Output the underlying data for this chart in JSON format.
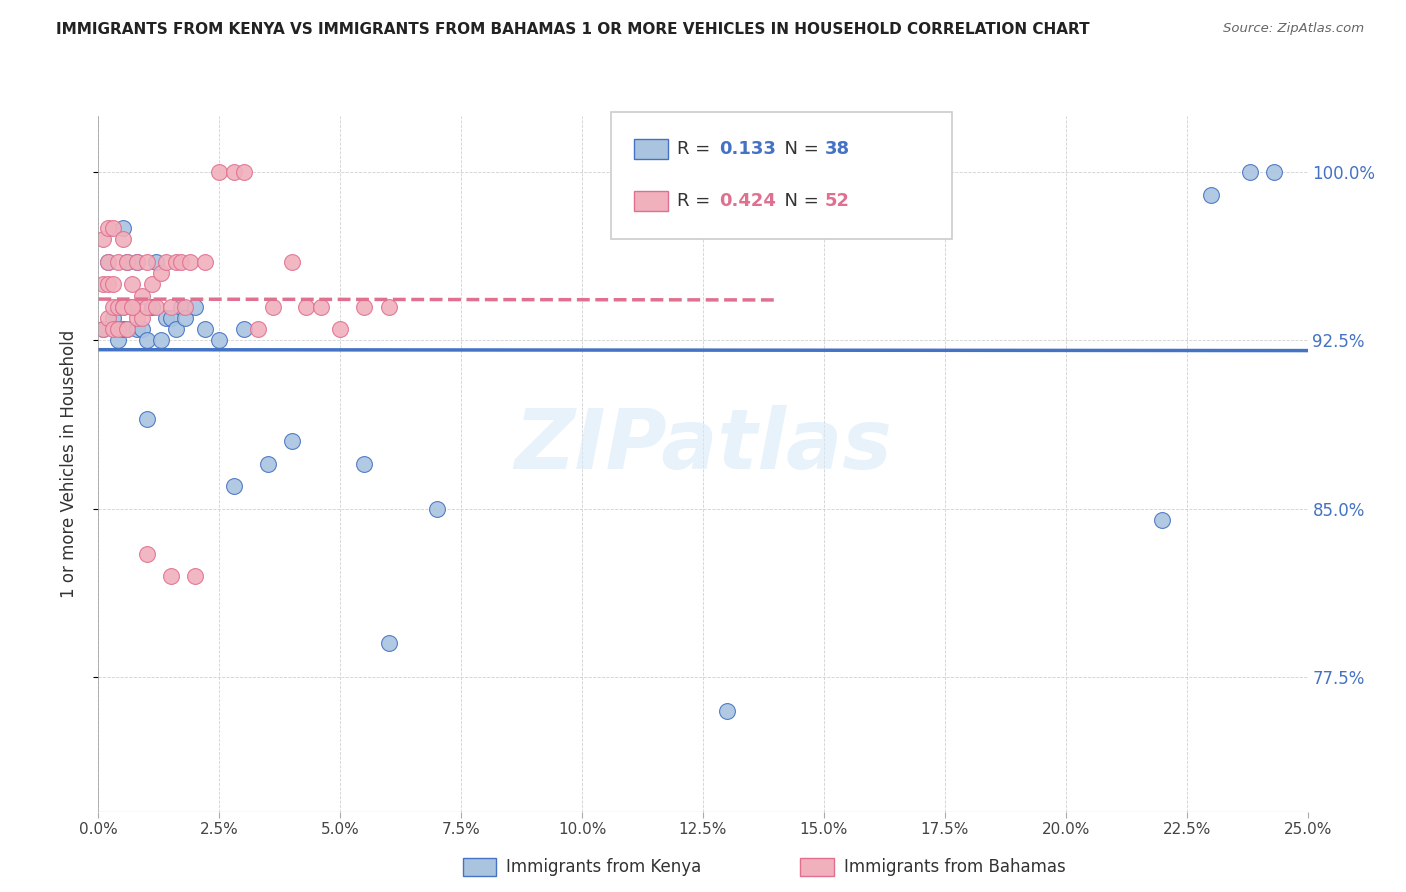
{
  "title": "IMMIGRANTS FROM KENYA VS IMMIGRANTS FROM BAHAMAS 1 OR MORE VEHICLES IN HOUSEHOLD CORRELATION CHART",
  "source": "Source: ZipAtlas.com",
  "ylabel_label": "1 or more Vehicles in Household",
  "legend_kenya": "Immigrants from Kenya",
  "legend_bahamas": "Immigrants from Bahamas",
  "R_kenya": 0.133,
  "N_kenya": 38,
  "R_bahamas": 0.424,
  "N_bahamas": 52,
  "color_kenya": "#aac4e0",
  "color_bahamas": "#f0b0bc",
  "line_color_kenya": "#4472c4",
  "line_color_bahamas": "#e07090",
  "xlim": [
    0.0,
    0.25
  ],
  "ylim": [
    0.715,
    1.025
  ],
  "ytick_vals": [
    0.775,
    0.85,
    0.925,
    1.0
  ],
  "kenya_x": [
    0.001,
    0.002,
    0.003,
    0.004,
    0.004,
    0.005,
    0.005,
    0.006,
    0.006,
    0.007,
    0.008,
    0.008,
    0.009,
    0.01,
    0.01,
    0.011,
    0.012,
    0.013,
    0.014,
    0.015,
    0.016,
    0.017,
    0.018,
    0.02,
    0.022,
    0.025,
    0.028,
    0.03,
    0.035,
    0.04,
    0.055,
    0.06,
    0.07,
    0.13,
    0.22,
    0.23,
    0.238,
    0.243
  ],
  "kenya_y": [
    0.93,
    0.96,
    0.935,
    0.93,
    0.925,
    0.975,
    0.93,
    0.96,
    0.93,
    0.94,
    0.93,
    0.96,
    0.93,
    0.925,
    0.89,
    0.94,
    0.96,
    0.925,
    0.935,
    0.935,
    0.93,
    0.94,
    0.935,
    0.94,
    0.93,
    0.925,
    0.86,
    0.93,
    0.87,
    0.88,
    0.87,
    0.79,
    0.85,
    0.76,
    0.845,
    0.99,
    1.0,
    1.0
  ],
  "bahamas_x": [
    0.001,
    0.001,
    0.002,
    0.002,
    0.002,
    0.003,
    0.003,
    0.003,
    0.004,
    0.004,
    0.004,
    0.005,
    0.005,
    0.006,
    0.006,
    0.007,
    0.007,
    0.008,
    0.008,
    0.009,
    0.009,
    0.01,
    0.01,
    0.011,
    0.012,
    0.013,
    0.014,
    0.015,
    0.016,
    0.017,
    0.018,
    0.019,
    0.02,
    0.022,
    0.025,
    0.028,
    0.03,
    0.033,
    0.036,
    0.04,
    0.043,
    0.046,
    0.05,
    0.055,
    0.06,
    0.001,
    0.002,
    0.003,
    0.005,
    0.007,
    0.01,
    0.015
  ],
  "bahamas_y": [
    0.93,
    0.97,
    0.935,
    0.96,
    0.975,
    0.93,
    0.94,
    0.975,
    0.93,
    0.94,
    0.96,
    0.94,
    0.97,
    0.93,
    0.96,
    0.94,
    0.95,
    0.935,
    0.96,
    0.935,
    0.945,
    0.94,
    0.96,
    0.95,
    0.94,
    0.955,
    0.96,
    0.94,
    0.96,
    0.96,
    0.94,
    0.96,
    0.82,
    0.96,
    1.0,
    1.0,
    1.0,
    0.93,
    0.94,
    0.96,
    0.94,
    0.94,
    0.93,
    0.94,
    0.94,
    0.95,
    0.95,
    0.95,
    0.94,
    0.94,
    0.83,
    0.82
  ],
  "bahamas_line_xmax": 0.14,
  "watermark": "ZIPatlas"
}
